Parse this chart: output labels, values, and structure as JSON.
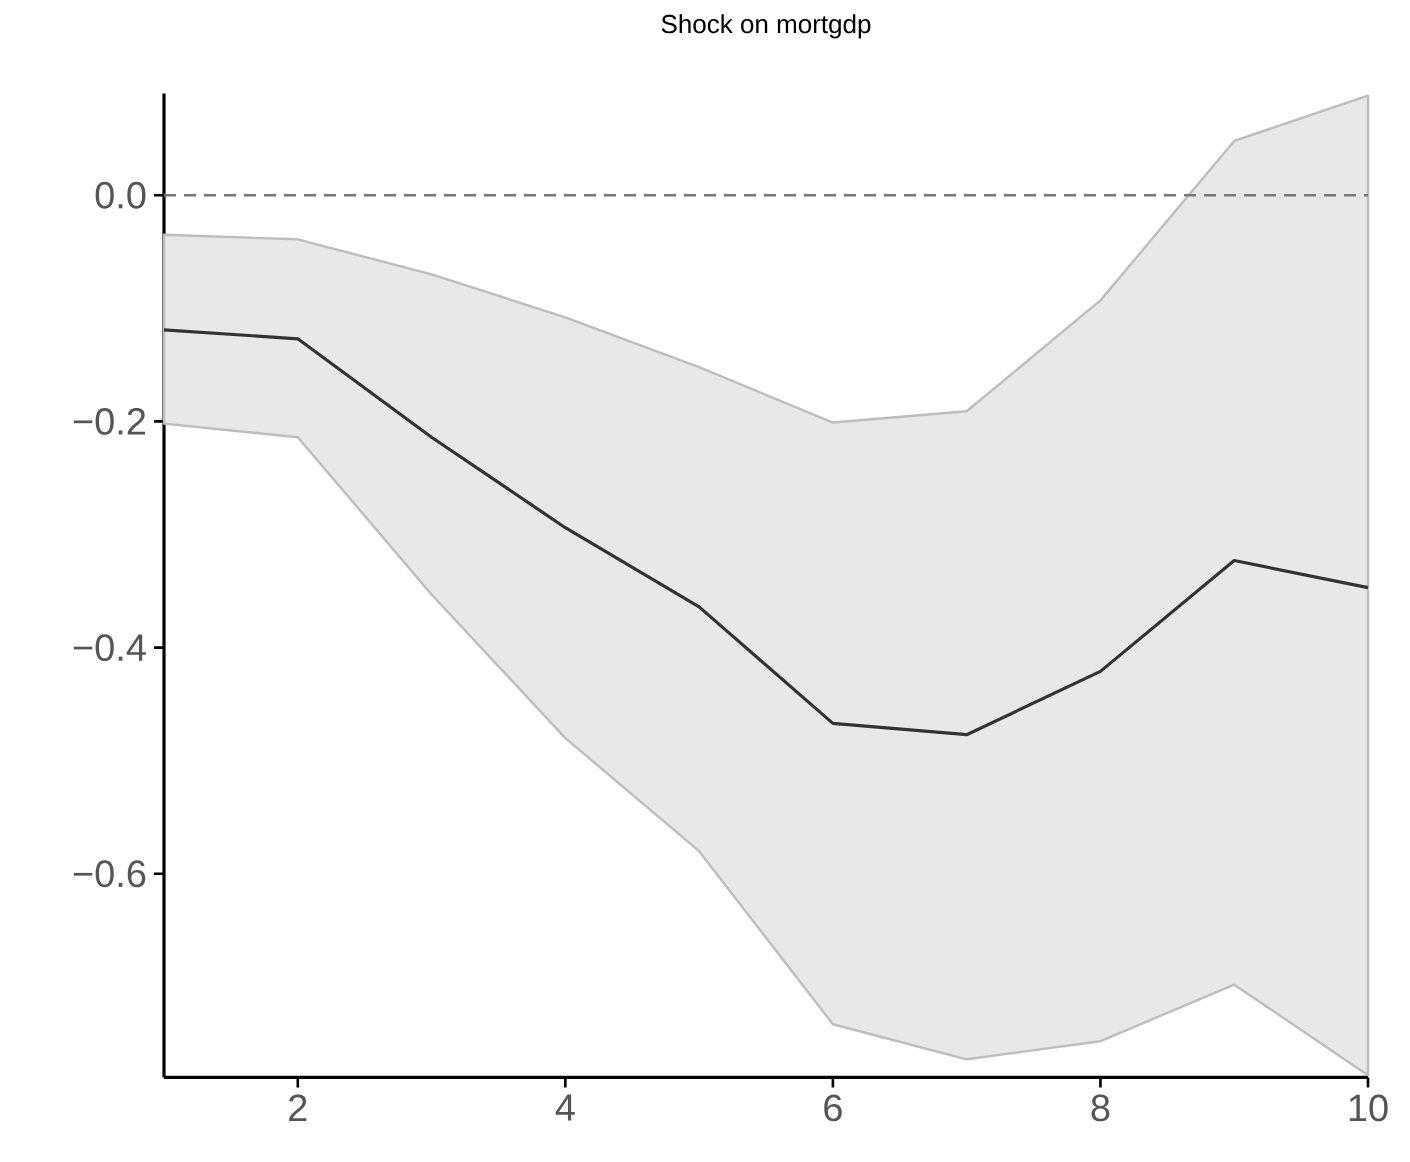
{
  "chart_data": {
    "type": "line",
    "title": "Shock on mortgdp",
    "x": [
      1,
      2,
      3,
      4,
      5,
      6,
      7,
      8,
      9,
      10
    ],
    "series": [
      {
        "color": "#333333",
        "values": [
          -0.119,
          -0.127,
          -0.214,
          -0.294,
          -0.364,
          -0.467,
          -0.477,
          -0.421,
          -0.323,
          -0.347
        ],
        "lower": [
          -0.202,
          -0.214,
          -0.353,
          -0.48,
          -0.58,
          -0.733,
          -0.764,
          -0.748,
          -0.698,
          -0.778
        ],
        "upper": [
          -0.035,
          -0.039,
          -0.07,
          -0.108,
          -0.152,
          -0.201,
          -0.191,
          -0.093,
          0.048,
          0.088
        ]
      }
    ],
    "xlim": [
      1,
      10
    ],
    "ylim": [
      -0.78,
      0.09
    ],
    "xticks": [
      2,
      4,
      6,
      8,
      10
    ],
    "yticks": [
      {
        "value": -0.6,
        "label": "−0.6"
      },
      {
        "value": -0.4,
        "label": "−0.4"
      },
      {
        "value": -0.2,
        "label": "−0.2"
      },
      {
        "value": 0,
        "label": "0.0"
      }
    ],
    "ref_lines": [
      {
        "axis": "y",
        "value": 0,
        "color": "#777777",
        "line_style": "dashed"
      }
    ]
  }
}
